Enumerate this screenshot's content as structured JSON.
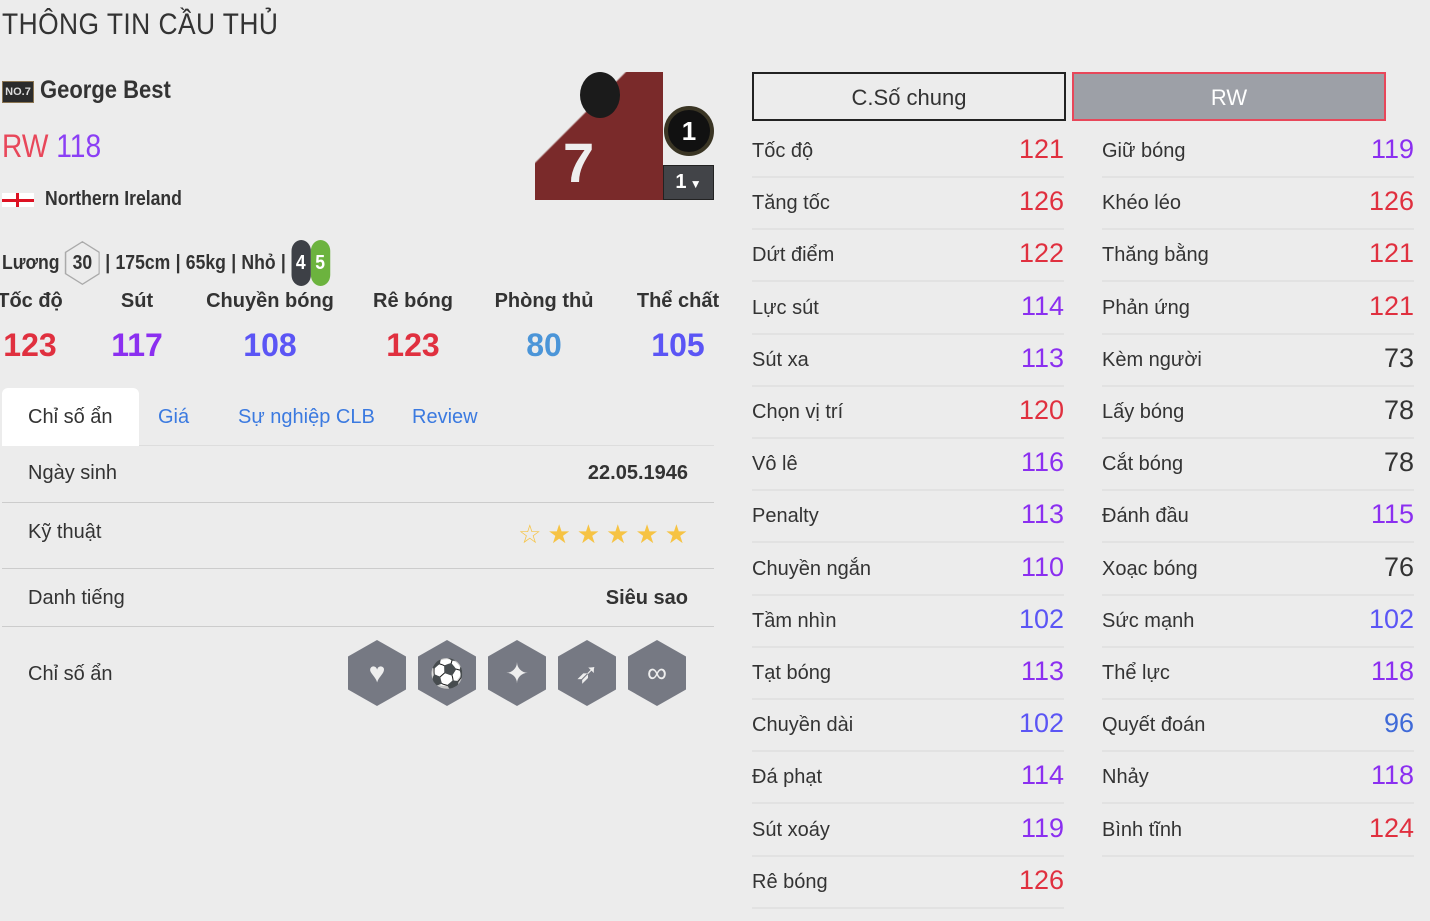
{
  "page_title": "THÔNG TIN CẦU THỦ",
  "player": {
    "badge": "NO.7",
    "name": "George Best",
    "position": "RW",
    "ovr": "118",
    "nation": "Northern Ireland",
    "salary_label": "Lương",
    "salary": "30",
    "height": "175cm",
    "weight": "65kg",
    "body": "Nhỏ",
    "weak_foot": "4",
    "strong_foot": "5",
    "level": "1",
    "level_select": "1"
  },
  "main_stats": [
    {
      "label": "Tốc độ",
      "value": "123",
      "color": "#e0303f"
    },
    {
      "label": "Sút",
      "value": "117",
      "color": "#8b2ff0"
    },
    {
      "label": "Chuyền bóng",
      "value": "108",
      "color": "#5b55f5"
    },
    {
      "label": "Rê bóng",
      "value": "123",
      "color": "#e0303f"
    },
    {
      "label": "Phòng thủ",
      "value": "80",
      "color": "#4b95d8"
    },
    {
      "label": "Thể chất",
      "value": "105",
      "color": "#5b55f5"
    }
  ],
  "tabs": [
    "Chỉ số ẩn",
    "Giá",
    "Sự nghiệp CLB",
    "Review"
  ],
  "details": {
    "birth_label": "Ngày sinh",
    "birth": "22.05.1946",
    "skill_label": "Kỹ thuật",
    "skill_stars": 5,
    "skill_max": 6,
    "fame_label": "Danh tiếng",
    "fame": "Siêu sao",
    "traits_label": "Chỉ số ẩn",
    "traits": [
      "heart-player-icon",
      "long-shot-icon",
      "flair-icon",
      "speed-dribbler-icon",
      "playmaker-icon"
    ]
  },
  "buttons": {
    "general": "C.Số chung",
    "position": "RW"
  },
  "stats_left": [
    {
      "k": "Tốc độ",
      "v": "121"
    },
    {
      "k": "Tăng tốc",
      "v": "126"
    },
    {
      "k": "Dứt điểm",
      "v": "122"
    },
    {
      "k": "Lực sút",
      "v": "114"
    },
    {
      "k": "Sút xa",
      "v": "113"
    },
    {
      "k": "Chọn vị trí",
      "v": "120"
    },
    {
      "k": "Vô lê",
      "v": "116"
    },
    {
      "k": "Penalty",
      "v": "113"
    },
    {
      "k": "Chuyền ngắn",
      "v": "110"
    },
    {
      "k": "Tầm nhìn",
      "v": "102"
    },
    {
      "k": "Tạt bóng",
      "v": "113"
    },
    {
      "k": "Chuyền dài",
      "v": "102"
    },
    {
      "k": "Đá phạt",
      "v": "114"
    },
    {
      "k": "Sút xoáy",
      "v": "119"
    },
    {
      "k": "Rê bóng",
      "v": "126"
    }
  ],
  "stats_right": [
    {
      "k": "Giữ bóng",
      "v": "119"
    },
    {
      "k": "Khéo léo",
      "v": "126"
    },
    {
      "k": "Thăng bằng",
      "v": "121"
    },
    {
      "k": "Phản ứng",
      "v": "121"
    },
    {
      "k": "Kèm người",
      "v": "73"
    },
    {
      "k": "Lấy bóng",
      "v": "78"
    },
    {
      "k": "Cắt bóng",
      "v": "78"
    },
    {
      "k": "Đánh đầu",
      "v": "115"
    },
    {
      "k": "Xoạc bóng",
      "v": "76"
    },
    {
      "k": "Sức mạnh",
      "v": "102"
    },
    {
      "k": "Thể lực",
      "v": "118"
    },
    {
      "k": "Quyết đoán",
      "v": "96"
    },
    {
      "k": "Nhảy",
      "v": "118"
    },
    {
      "k": "Bình tĩnh",
      "v": "124"
    }
  ],
  "stat_colors": {
    "120+": "#e0303f",
    "110-119": "#8b2ff0",
    "100-109": "#5b55f5",
    "90-99": "#3f6ad8",
    "<90": "#333333"
  }
}
